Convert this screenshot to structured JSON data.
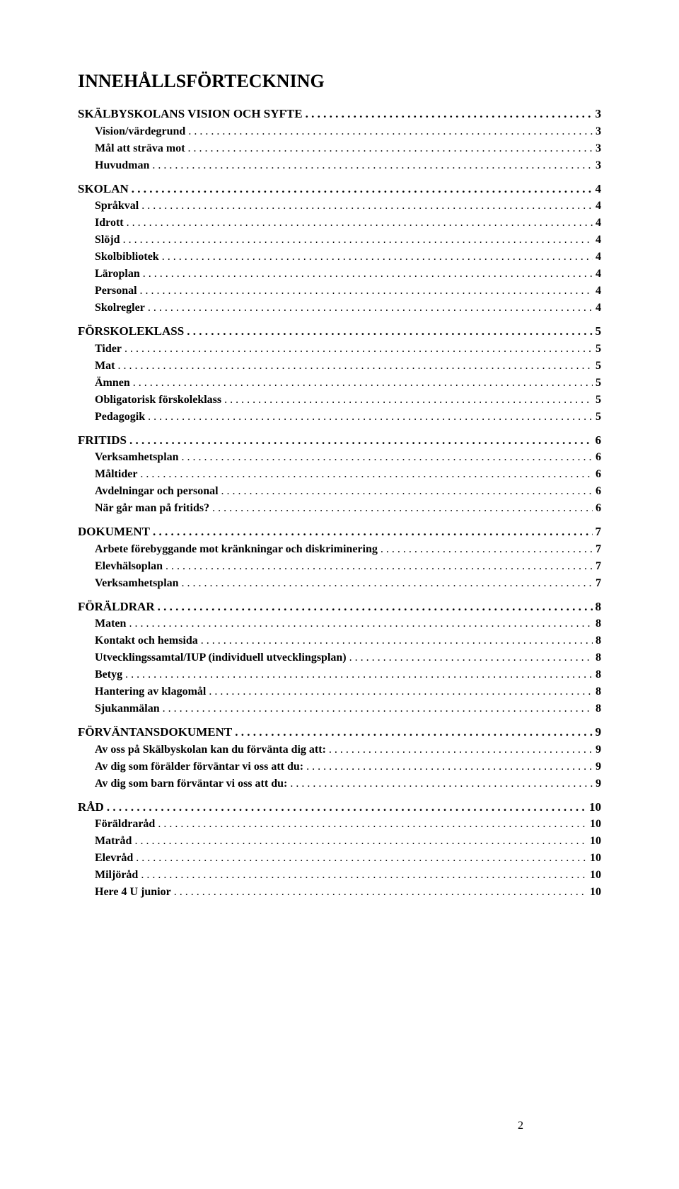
{
  "title": "INNEHÅLLSFÖRTECKNING",
  "pageNumber": "2",
  "dots": ". . . . . . . . . . . . . . . . . . . . . . . . . . . . . . . . . . . . . . . . . . . . . . . . . . . . . . . . . . . . . . . . . . . . . . . . . . . . . . . . . . . . . . . . . . . . . . . . . . . . . . . . . . . . . . . . . . . . . . . . . . . . . . . . . . . . . . . . . . . . . . . . . . . . . . .",
  "sections": [
    {
      "label": "SKÄLBYSKOLANS VISION OCH SYFTE",
      "page": "3",
      "sub": [
        {
          "label": "Vision/värdegrund",
          "page": "3"
        },
        {
          "label": "Mål att sträva mot",
          "page": "3"
        },
        {
          "label": "Huvudman",
          "page": "3"
        }
      ]
    },
    {
      "label": "SKOLAN",
      "page": "4",
      "sub": [
        {
          "label": "Språkval",
          "page": "4"
        },
        {
          "label": "Idrott",
          "page": "4"
        },
        {
          "label": "Slöjd",
          "page": "4"
        },
        {
          "label": "Skolbibliotek",
          "page": "4"
        },
        {
          "label": "Läroplan",
          "page": "4"
        },
        {
          "label": "Personal",
          "page": "4"
        },
        {
          "label": "Skolregler",
          "page": "4"
        }
      ]
    },
    {
      "label": "FÖRSKOLEKLASS",
      "page": "5",
      "sub": [
        {
          "label": "Tider",
          "page": "5"
        },
        {
          "label": "Mat",
          "page": "5"
        },
        {
          "label": "Ämnen",
          "page": "5"
        },
        {
          "label": "Obligatorisk förskoleklass",
          "page": "5"
        },
        {
          "label": "Pedagogik",
          "page": "5"
        }
      ]
    },
    {
      "label": "FRITIDS",
      "page": "6",
      "sub": [
        {
          "label": "Verksamhetsplan",
          "page": "6"
        },
        {
          "label": "Måltider",
          "page": "6"
        },
        {
          "label": "Avdelningar och personal",
          "page": "6"
        },
        {
          "label": "När går man på fritids?",
          "page": "6"
        }
      ]
    },
    {
      "label": "DOKUMENT",
      "page": "7",
      "sub": [
        {
          "label": "Arbete förebyggande mot kränkningar och diskriminering",
          "page": "7"
        },
        {
          "label": "Elevhälsoplan",
          "page": "7"
        },
        {
          "label": "Verksamhetsplan",
          "page": "7"
        }
      ]
    },
    {
      "label": "FÖRÄLDRAR",
      "page": "8",
      "sub": [
        {
          "label": "Maten",
          "page": "8"
        },
        {
          "label": "Kontakt och hemsida",
          "page": "8"
        },
        {
          "label": "Utvecklingssamtal/IUP (individuell utvecklingsplan)",
          "page": "8"
        },
        {
          "label": "Betyg",
          "page": "8"
        },
        {
          "label": "Hantering av klagomål",
          "page": "8"
        },
        {
          "label": "Sjukanmälan",
          "page": "8"
        }
      ]
    },
    {
      "label": "FÖRVÄNTANSDOKUMENT",
      "page": "9",
      "sub": [
        {
          "label": "Av oss på Skälbyskolan kan du förvänta dig att:",
          "page": "9"
        },
        {
          "label": "Av dig som förälder förväntar vi oss att du:",
          "page": "9"
        },
        {
          "label": "Av dig som barn förväntar vi oss att du:",
          "page": "9"
        }
      ]
    },
    {
      "label": "RÅD",
      "page": "10",
      "sub": [
        {
          "label": "Föräldraråd",
          "page": "10"
        },
        {
          "label": "Matråd",
          "page": "10"
        },
        {
          "label": "Elevråd",
          "page": "10"
        },
        {
          "label": "Miljöråd",
          "page": "10"
        },
        {
          "label": "Here 4 U junior",
          "page": "10"
        }
      ]
    }
  ]
}
